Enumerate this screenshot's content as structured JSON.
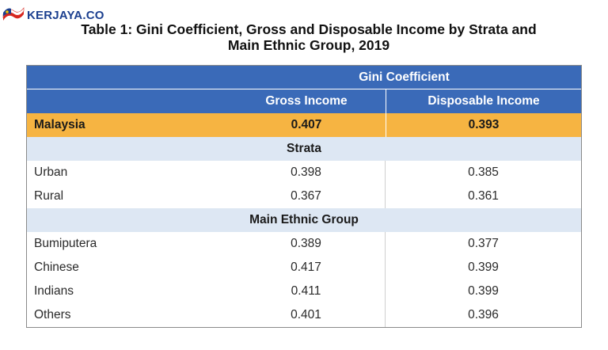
{
  "brand": {
    "name": "KERJAYA.CO"
  },
  "document": {
    "title_line1": "Table 1: Gini Coefficient, Gross and Disposable Income by Strata and",
    "title_line2": "Main Ethnic Group, 2019"
  },
  "table": {
    "group_header": "Gini Coefficient",
    "columns": [
      "Gross Income",
      "Disposable Income"
    ],
    "malaysia": {
      "label": "Malaysia",
      "gross": "0.407",
      "disposable": "0.393"
    },
    "sections": [
      {
        "heading": "Strata",
        "rows": [
          {
            "label": "Urban",
            "gross": "0.398",
            "disposable": "0.385"
          },
          {
            "label": "Rural",
            "gross": "0.367",
            "disposable": "0.361"
          }
        ]
      },
      {
        "heading": "Main Ethnic Group",
        "rows": [
          {
            "label": "Bumiputera",
            "gross": "0.389",
            "disposable": "0.377"
          },
          {
            "label": "Chinese",
            "gross": "0.417",
            "disposable": "0.399"
          },
          {
            "label": "Indians",
            "gross": "0.411",
            "disposable": "0.399"
          },
          {
            "label": "Others",
            "gross": "0.401",
            "disposable": "0.396"
          }
        ]
      }
    ]
  },
  "colors": {
    "header_blue": "#3a6ab8",
    "highlight_orange": "#f6b442",
    "section_blue": "#dde7f3",
    "brand_blue": "#1b3f8f"
  }
}
